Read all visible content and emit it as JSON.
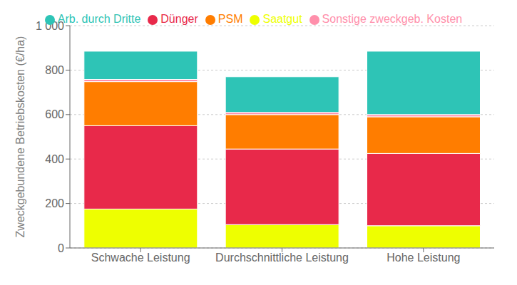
{
  "chart_data": {
    "type": "bar",
    "stacked": true,
    "categories": [
      "Schwache Leistung",
      "Durchschnittliche Leistung",
      "Hohe Leistung"
    ],
    "series": [
      {
        "name": "Saatgut",
        "values": [
          175,
          105,
          100
        ],
        "color": "#EEFF00"
      },
      {
        "name": "Dünger",
        "values": [
          375,
          340,
          325
        ],
        "color": "#E8294A"
      },
      {
        "name": "PSM",
        "values": [
          198,
          155,
          165
        ],
        "color": "#FF7D00"
      },
      {
        "name": "Sonstige zweckgeb. Kosten",
        "values": [
          10,
          10,
          10
        ],
        "color": "#FF8FAB"
      },
      {
        "name": "Arb. durch Dritte",
        "values": [
          127,
          160,
          285
        ],
        "color": "#2EC4B6"
      }
    ],
    "ylabel": "Zweckgebundene Betriebskosten (€/ha)",
    "ylim": [
      0,
      1000
    ],
    "yticks": [
      0,
      200,
      400,
      600,
      800,
      {
        "value": 1000,
        "label": "1 000"
      }
    ],
    "grid": true,
    "legend": "top"
  }
}
